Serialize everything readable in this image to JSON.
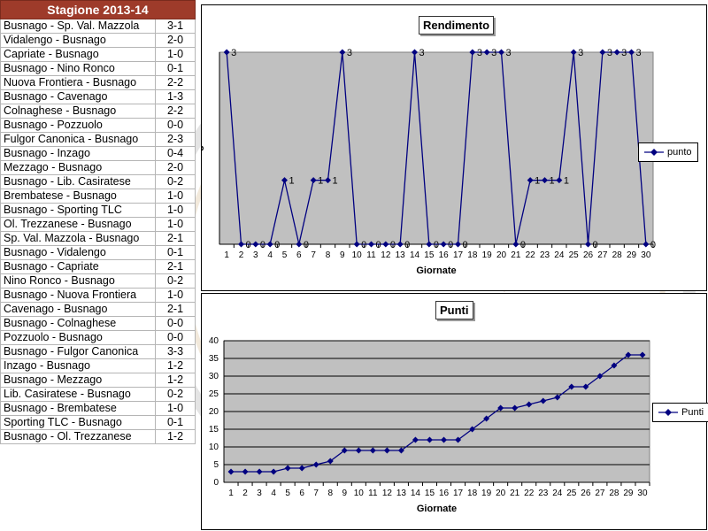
{
  "season_title": "Stagione 2013-14",
  "results": [
    {
      "match": "Busnago - Sp. Val. Mazzola",
      "score": "3-1"
    },
    {
      "match": "Vidalengo - Busnago",
      "score": "2-0"
    },
    {
      "match": "Capriate - Busnago",
      "score": "1-0"
    },
    {
      "match": "Busnago - Nino Ronco",
      "score": "0-1"
    },
    {
      "match": "Nuova Frontiera - Busnago",
      "score": "2-2"
    },
    {
      "match": "Busnago - Cavenago",
      "score": "1-3"
    },
    {
      "match": "Colnaghese - Busnago",
      "score": "2-2"
    },
    {
      "match": "Busnago - Pozzuolo",
      "score": "0-0"
    },
    {
      "match": "Fulgor Canonica - Busnago",
      "score": "2-3"
    },
    {
      "match": "Busnago - Inzago",
      "score": "0-4"
    },
    {
      "match": "Mezzago - Busnago",
      "score": "2-0"
    },
    {
      "match": "Busnago - Lib. Casiratese",
      "score": "0-2"
    },
    {
      "match": "Brembatese - Busnago",
      "score": "1-0"
    },
    {
      "match": "Busnago - Sporting TLC",
      "score": "1-0"
    },
    {
      "match": "Ol. Trezzanese - Busnago",
      "score": "1-0"
    },
    {
      "match": "Sp. Val. Mazzola - Busnago",
      "score": "2-1"
    },
    {
      "match": "Busnago - Vidalengo",
      "score": "0-1"
    },
    {
      "match": "Busnago - Capriate",
      "score": "2-1"
    },
    {
      "match": "Nino Ronco - Busnago",
      "score": "0-2"
    },
    {
      "match": "Busnago - Nuova Frontiera",
      "score": "1-0"
    },
    {
      "match": "Cavenago - Busnago",
      "score": "2-1"
    },
    {
      "match": "Busnago - Colnaghese",
      "score": "0-0"
    },
    {
      "match": "Pozzuolo - Busnago",
      "score": "0-0"
    },
    {
      "match": "Busnago - Fulgor Canonica",
      "score": "3-3"
    },
    {
      "match": "Inzago - Busnago",
      "score": "1-2"
    },
    {
      "match": "Busnago - Mezzago",
      "score": "1-2"
    },
    {
      "match": "Lib. Casiratese - Busnago",
      "score": "0-2"
    },
    {
      "match": "Busnago - Brembatese",
      "score": "1-0"
    },
    {
      "match": "Sporting TLC - Busnago",
      "score": "0-1"
    },
    {
      "match": "Busnago - Ol. Trezzanese",
      "score": "1-2"
    }
  ],
  "watermark": {
    "line1": "A. C. D.",
    "line2": "BUSNAGO"
  },
  "colors": {
    "header_bg": "#9e3b2a",
    "plot_bg": "#c0c0c0",
    "series": "#000080"
  },
  "chart_data": [
    {
      "type": "line",
      "title": "Rendimento",
      "xlabel": "Giornate",
      "ylabel": "3",
      "ylim": [
        0,
        3
      ],
      "show_y_ticks": false,
      "grid": false,
      "legend": "right",
      "data_labels": true,
      "x": [
        1,
        2,
        3,
        4,
        5,
        6,
        7,
        8,
        9,
        10,
        11,
        12,
        13,
        14,
        15,
        16,
        17,
        18,
        19,
        20,
        21,
        22,
        23,
        24,
        25,
        26,
        27,
        28,
        29,
        30
      ],
      "series": [
        {
          "name": "punto",
          "values": [
            3,
            0,
            0,
            0,
            1,
            0,
            1,
            1,
            3,
            0,
            0,
            0,
            0,
            3,
            0,
            0,
            0,
            3,
            3,
            3,
            0,
            1,
            1,
            1,
            3,
            0,
            3,
            3,
            3,
            0
          ]
        }
      ]
    },
    {
      "type": "line",
      "title": "Punti",
      "xlabel": "Giornate",
      "ylabel": "",
      "ylim": [
        0,
        40
      ],
      "yticks": [
        0,
        5,
        10,
        15,
        20,
        25,
        30,
        35,
        40
      ],
      "grid": true,
      "legend": "right",
      "data_labels": false,
      "x": [
        1,
        2,
        3,
        4,
        5,
        6,
        7,
        8,
        9,
        10,
        11,
        12,
        13,
        14,
        15,
        16,
        17,
        18,
        19,
        20,
        21,
        22,
        23,
        24,
        25,
        26,
        27,
        28,
        29,
        30
      ],
      "series": [
        {
          "name": "Punti",
          "values": [
            3,
            3,
            3,
            3,
            4,
            4,
            5,
            6,
            9,
            9,
            9,
            9,
            9,
            12,
            12,
            12,
            12,
            15,
            18,
            21,
            21,
            22,
            23,
            24,
            27,
            27,
            30,
            33,
            36,
            36
          ]
        }
      ]
    }
  ]
}
